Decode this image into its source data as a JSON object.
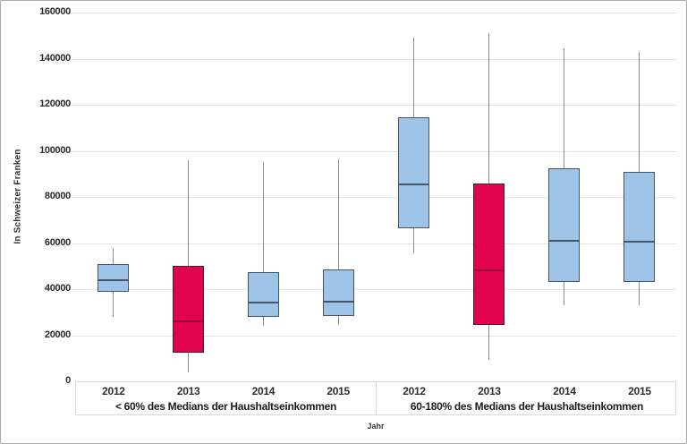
{
  "chart_data": {
    "type": "boxplot",
    "title": "",
    "ylabel": "In Schweizer Franken",
    "xlabel": "Jahr",
    "ylim": [
      0,
      160000
    ],
    "ytick_step": 20000,
    "grid": true,
    "legend": "none",
    "groups": [
      {
        "label": "< 60% des Medians der Haushaltseinkommen",
        "boxes": [
          {
            "year": "2012",
            "whisker_low": 28000,
            "q1": 39000,
            "median": 44000,
            "q3": 51000,
            "whisker_high": 58000,
            "color": "blue"
          },
          {
            "year": "2013",
            "whisker_low": 4000,
            "q1": 12500,
            "median": 26000,
            "q3": 50000,
            "whisker_high": 96000,
            "color": "red"
          },
          {
            "year": "2014",
            "whisker_low": 24000,
            "q1": 28000,
            "median": 34000,
            "q3": 47500,
            "whisker_high": 95000,
            "color": "blue"
          },
          {
            "year": "2015",
            "whisker_low": 24500,
            "q1": 28500,
            "median": 34500,
            "q3": 48500,
            "whisker_high": 96500,
            "color": "blue"
          }
        ]
      },
      {
        "label": "60-180% des Medians der Haushaltseinkommen",
        "boxes": [
          {
            "year": "2012",
            "whisker_low": 55500,
            "q1": 66500,
            "median": 85500,
            "q3": 114500,
            "whisker_high": 149000,
            "color": "blue"
          },
          {
            "year": "2013",
            "whisker_low": 9500,
            "q1": 24500,
            "median": 48000,
            "q3": 86000,
            "whisker_high": 151000,
            "color": "red"
          },
          {
            "year": "2014",
            "whisker_low": 33000,
            "q1": 43000,
            "median": 61000,
            "q3": 92500,
            "whisker_high": 144500,
            "color": "blue"
          },
          {
            "year": "2015",
            "whisker_low": 33000,
            "q1": 43000,
            "median": 60500,
            "q3": 91000,
            "whisker_high": 143000,
            "color": "blue"
          }
        ]
      }
    ],
    "colors": {
      "box_blue_fill": "#9DC3E6",
      "box_blue_border": "#44546A",
      "box_red_fill": "#E2034E",
      "box_red_border": "#4d1f2d",
      "median_blue": "#44546A",
      "median_red": "#8f0a3e",
      "whisker": "#8c8c8c",
      "gridline": "#e3e3e3"
    }
  }
}
